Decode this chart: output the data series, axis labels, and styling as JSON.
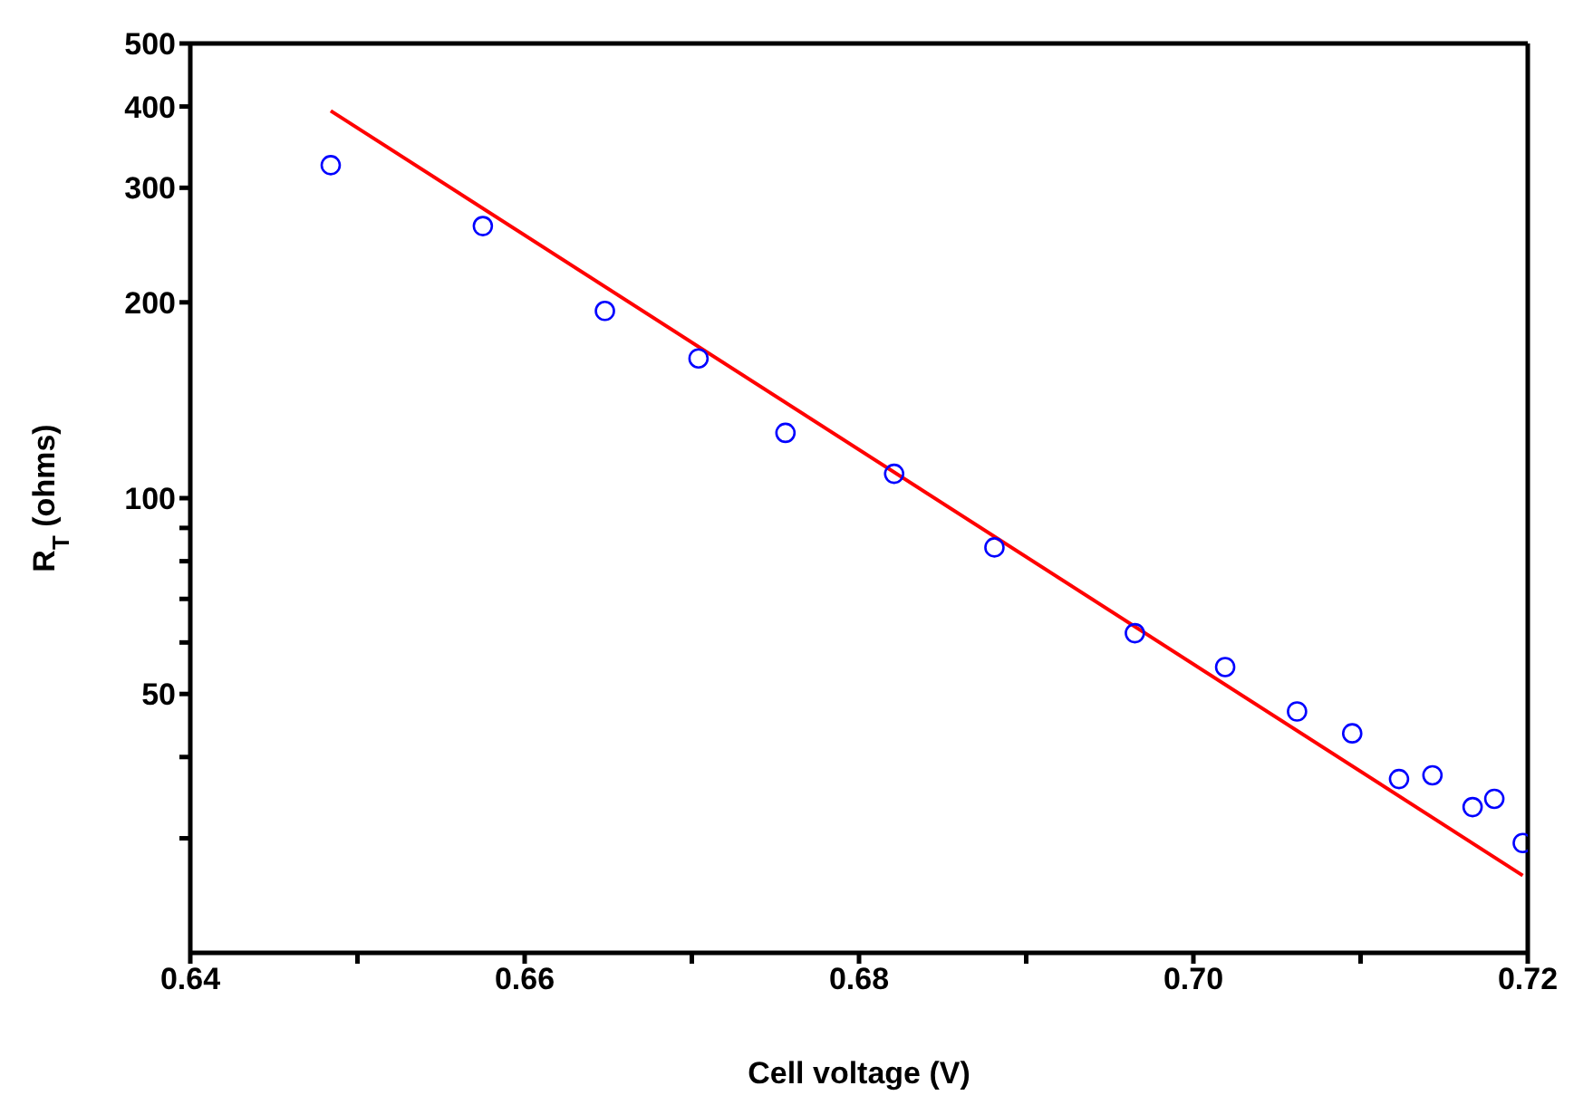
{
  "chart_data": {
    "type": "scatter",
    "xlabel": "Cell voltage (V)",
    "ylabel": "R$_{T}$ (ohms)",
    "log": "y",
    "xlim": [
      0.64,
      0.72
    ],
    "xticks": [
      {
        "value": 0.64,
        "label": "0.64"
      },
      {
        "value": 0.65,
        "label": null
      },
      {
        "value": 0.66,
        "label": "0.66"
      },
      {
        "value": 0.67,
        "label": null
      },
      {
        "value": 0.68,
        "label": "0.68"
      },
      {
        "value": 0.69,
        "label": null
      },
      {
        "value": 0.7,
        "label": "0.70"
      },
      {
        "value": 0.71,
        "label": null
      },
      {
        "value": 0.72,
        "label": "0.72"
      }
    ],
    "ylim": [
      20,
      500
    ],
    "yticks": [
      {
        "value": 30,
        "label": null
      },
      {
        "value": 40,
        "label": null
      },
      50,
      {
        "value": 60,
        "label": null
      },
      {
        "value": 70,
        "label": null
      },
      {
        "value": 80,
        "label": null
      },
      {
        "value": 90,
        "label": null
      },
      100,
      200,
      300,
      400,
      500
    ],
    "series": [
      {
        "marker": "circle",
        "color": "#0000ff",
        "x": [
          0.6484,
          0.6575,
          0.6648,
          0.6704,
          0.6756,
          0.6821,
          0.6881,
          0.6965,
          0.7019,
          0.7062,
          0.7095,
          0.7123,
          0.7143,
          0.7167,
          0.718,
          0.7197
        ],
        "values": [
          325,
          262,
          194,
          164,
          126,
          109,
          84,
          62,
          55,
          47,
          43.5,
          37,
          37.5,
          33.5,
          34.5,
          29.5
        ]
      },
      {
        "type": "line",
        "marker": "none",
        "color": "#ff0000",
        "x": [
          0.6484,
          0.7197
        ],
        "values": [
          394,
          26.3
        ]
      }
    ]
  }
}
